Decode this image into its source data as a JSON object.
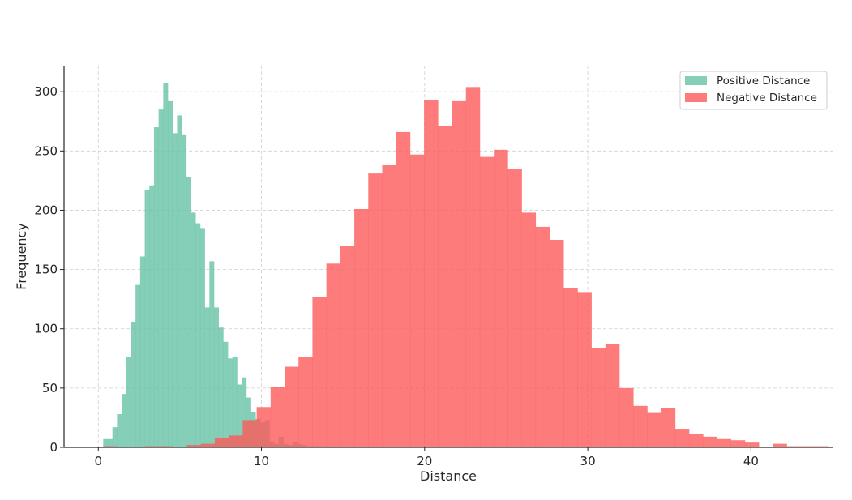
{
  "chart_data": {
    "type": "histogram",
    "xlabel": "Distance",
    "ylabel": "Frequency",
    "xlim": [
      -2.1,
      45.0
    ],
    "ylim": [
      0,
      322
    ],
    "xticks": [
      0,
      10,
      20,
      30,
      40
    ],
    "yticks": [
      0,
      50,
      100,
      150,
      200,
      250,
      300
    ],
    "grid": true,
    "legend_position": "top-right",
    "series": [
      {
        "name": "Positive Distance",
        "color": "#66c2a5",
        "opacity": 0.8,
        "bin_start": 0.3,
        "bin_width": 0.283,
        "values": [
          7,
          7,
          17,
          28,
          45,
          76,
          106,
          137,
          161,
          217,
          221,
          270,
          285,
          307,
          292,
          265,
          280,
          264,
          228,
          198,
          189,
          185,
          118,
          157,
          118,
          101,
          89,
          75,
          76,
          53,
          59,
          42,
          30,
          24,
          21,
          23,
          5,
          3,
          9,
          3,
          2,
          4,
          3,
          2,
          1,
          1,
          1,
          0,
          1
        ]
      },
      {
        "name": "Negative Distance",
        "color": "#fc5a5a",
        "opacity": 0.8,
        "bin_start": 0.3,
        "bin_width": 0.855,
        "values": [
          1,
          0,
          0,
          1,
          1,
          0,
          2,
          3,
          8,
          10,
          23,
          34,
          51,
          68,
          76,
          127,
          155,
          170,
          201,
          231,
          238,
          266,
          247,
          293,
          271,
          292,
          304,
          245,
          251,
          235,
          198,
          186,
          175,
          134,
          131,
          84,
          87,
          50,
          35,
          29,
          33,
          15,
          11,
          9,
          7,
          6,
          4,
          0,
          3,
          1,
          1,
          1
        ]
      }
    ]
  }
}
